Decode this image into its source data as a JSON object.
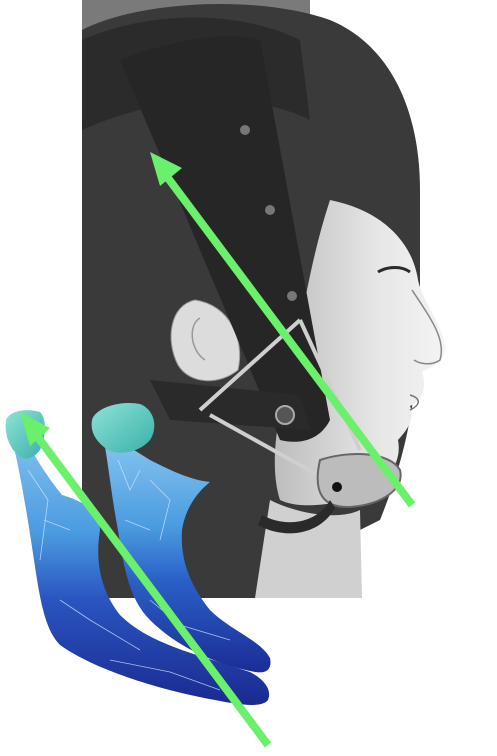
{
  "figure": {
    "photo_tone": "#8a8a8a",
    "colors": {
      "arrow": "#6bf06b",
      "mesh_light": "#4a9be0",
      "mesh_mid": "#2a66c8",
      "mesh_dark": "#1a2f9a",
      "condyle": "#55c9c0",
      "strap": "#2e2e2e",
      "skin": "#e0e0e0",
      "hair": "#3a3a3a"
    },
    "icons": [
      "head-photo",
      "chincap-strap",
      "mandible-mesh-left",
      "mandible-mesh-right",
      "force-arrow-head",
      "force-arrow-mandible"
    ]
  }
}
